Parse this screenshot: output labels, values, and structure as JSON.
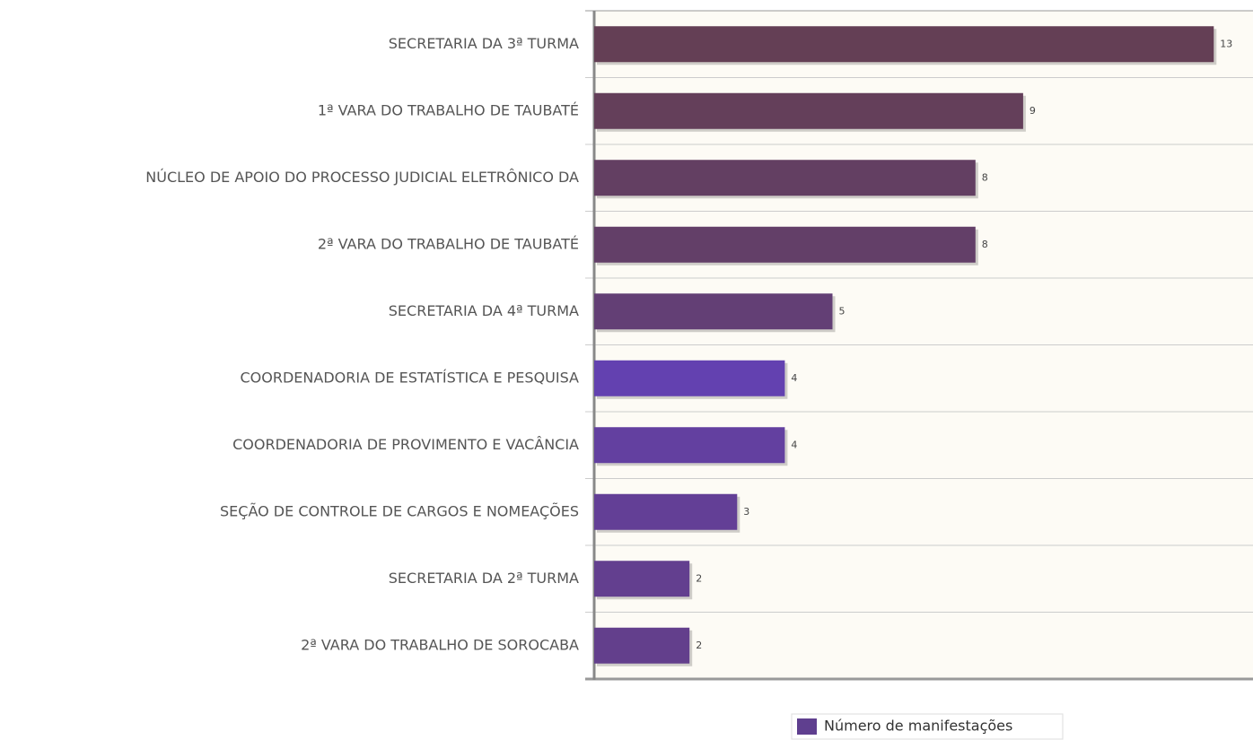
{
  "chart_data": {
    "type": "hbar",
    "categories": [
      "SECRETARIA DA 3ª TURMA",
      "1ª VARA DO TRABALHO DE TAUBATÉ",
      "NÚCLEO DE APOIO DO PROCESSO JUDICIAL ELETRÔNICO DA",
      "2ª VARA DO TRABALHO DE TAUBATÉ",
      "SECRETARIA DA 4ª TURMA",
      "COORDENADORIA DE ESTATÍSTICA E PESQUISA",
      "COORDENADORIA DE PROVIMENTO E VACÂNCIA",
      "SEÇÃO DE CONTROLE DE CARGOS E NOMEAÇÕES",
      "SECRETARIA DA 2ª TURMA",
      "2ª VARA DO TRABALHO DE SOROCABA"
    ],
    "series": [
      {
        "name": "Número de manifestações",
        "color": "#5f3f8f",
        "values": [
          13,
          9,
          8,
          8,
          5,
          4,
          4,
          3,
          2,
          2
        ],
        "colors": [
          "#643f55",
          "#643f5a",
          "#633f62",
          "#633f68",
          "#633f75",
          "#6341b0",
          "#6340a0",
          "#633f96",
          "#633f8f",
          "#633f8c"
        ]
      }
    ],
    "legend": "bottom"
  }
}
